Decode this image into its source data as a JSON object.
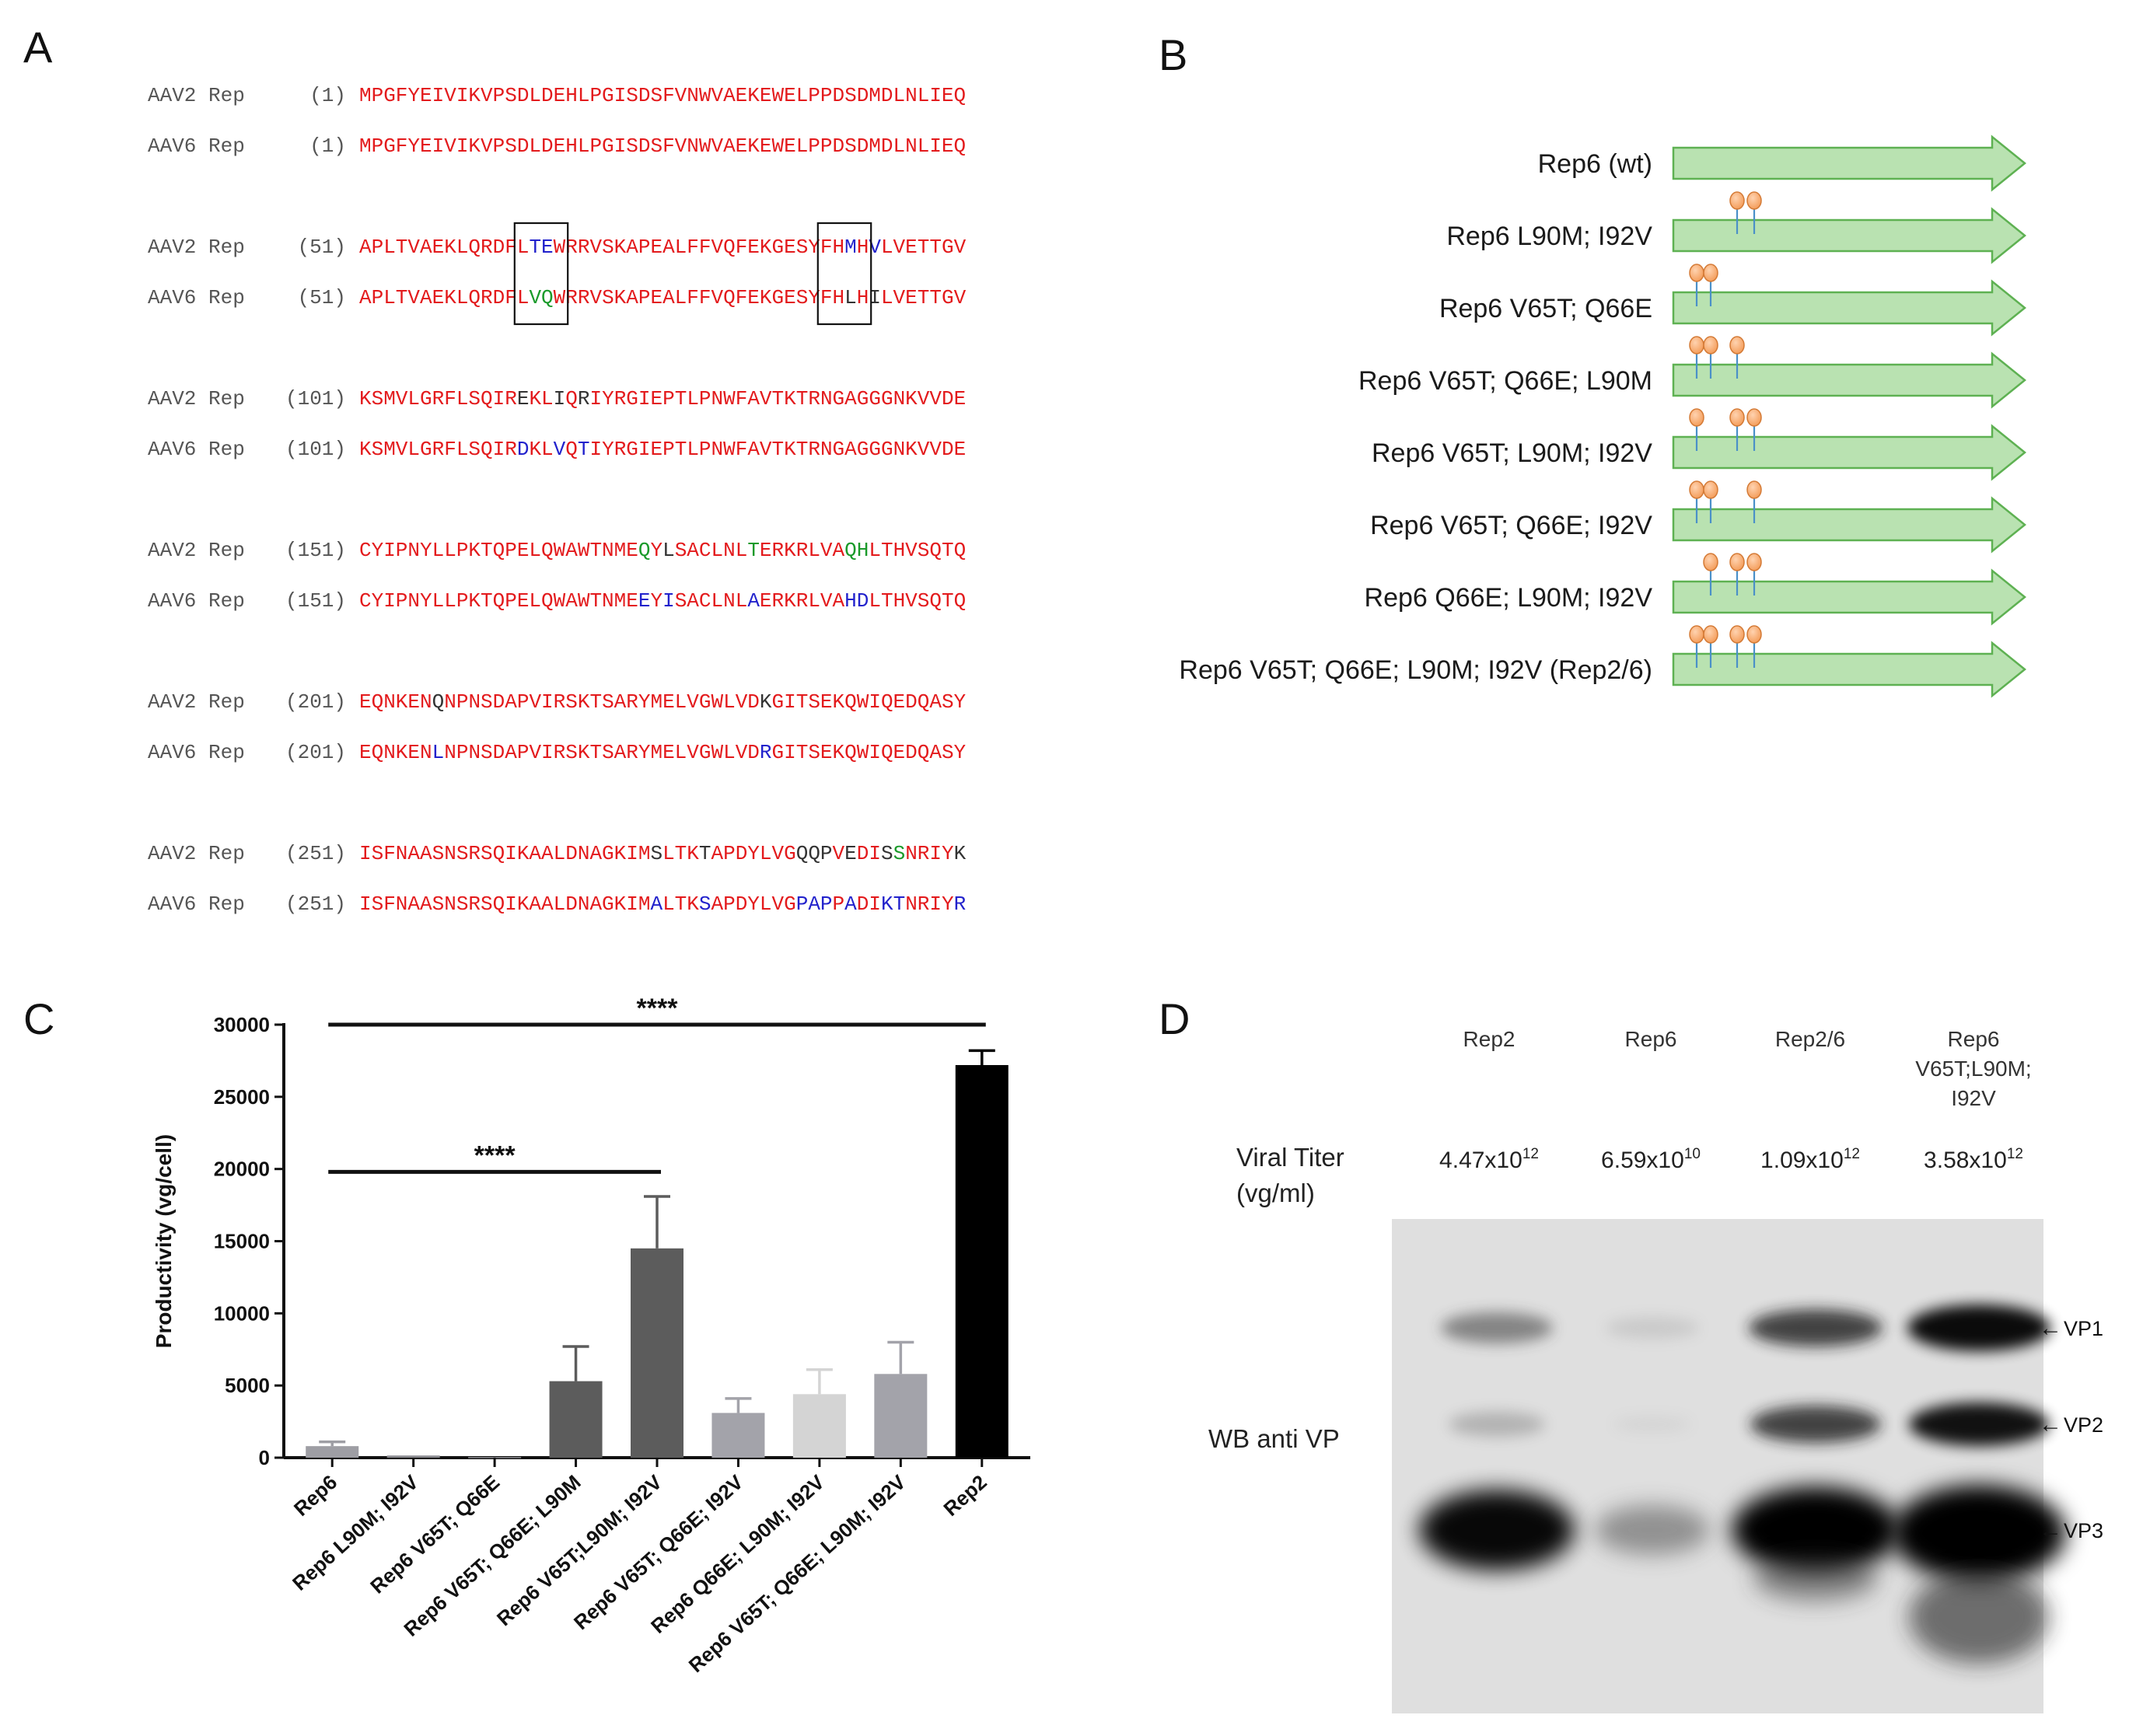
{
  "panels": {
    "a": "A",
    "b": "B",
    "c": "C",
    "d": "D"
  },
  "alignment": {
    "blocks": [
      {
        "start": "(1)",
        "aav2": "MPGFYEIVIKVPSDLDEHLPGISDSFVNWVAEKEWELPPDSDMDLNLIEQ",
        "aav6": "MPGFYEIVIKVPSDLDEHLPGISDSFVNWVAEKEWELPPDSDMDLNLIEQ",
        "diffs2": [],
        "diffs6": []
      },
      {
        "start": "(51)",
        "aav2": "APLTVAEKLQRDFLTEWRRVSKAPEALFFVQFEKGESYFHMHVLVETTGV",
        "aav6": "APLTVAEKLQRDFLVQWRRVSKAPEALFFVQFEKGESYFHLHILVETTGV",
        "diffs2": [
          [
            14,
            "#2222cc"
          ],
          [
            15,
            "#2222cc"
          ],
          [
            40,
            "#2222cc"
          ],
          [
            42,
            "#2222cc"
          ]
        ],
        "diffs6": [
          [
            14,
            "#1a9a2a"
          ],
          [
            15,
            "#1a9a2a"
          ],
          [
            40,
            "#333333"
          ],
          [
            42,
            "#333333"
          ]
        ]
      },
      {
        "start": "(101)",
        "aav2": "KSMVLGRFLSQIREKLIQRIYRGIEPTLPNWFAVTKTRNGAGGGNKVVDE",
        "aav6": "KSMVLGRFLSQIRDKLVQTIYRGIEPTLPNWFAVTKTRNGAGGGNKVVDE",
        "diffs2": [
          [
            13,
            "#333333"
          ],
          [
            16,
            "#333333"
          ],
          [
            18,
            "#333333"
          ]
        ],
        "diffs6": [
          [
            13,
            "#2222cc"
          ],
          [
            16,
            "#2222cc"
          ],
          [
            18,
            "#2222cc"
          ]
        ]
      },
      {
        "start": "(151)",
        "aav2": "CYIPNYLLPKTQPELQWAWTNMEQYLSACLNLTERKRLVAQHLTHVSQTQ",
        "aav6": "CYIPNYLLPKTQPELQWAWTNMEEYISACLNLAERKRLVAHDLTHVSQTQ",
        "diffs2": [
          [
            23,
            "#1a9a2a"
          ],
          [
            25,
            "#333333"
          ],
          [
            32,
            "#1a9a2a"
          ],
          [
            40,
            "#1a9a2a"
          ],
          [
            41,
            "#1a9a2a"
          ]
        ],
        "diffs6": [
          [
            23,
            "#2222cc"
          ],
          [
            25,
            "#2222cc"
          ],
          [
            32,
            "#2222cc"
          ],
          [
            40,
            "#2222cc"
          ],
          [
            41,
            "#2222cc"
          ]
        ]
      },
      {
        "start": "(201)",
        "aav2": "EQNKENQNPNSDAPVIRSKTSARYMELVGWLVDKGITSEKQWIQEDQASY",
        "aav6": "EQNKENLNPNSDAPVIRSKTSARYMELVGWLVDRGITSEKQWIQEDQASY",
        "diffs2": [
          [
            6,
            "#333333"
          ],
          [
            33,
            "#333333"
          ]
        ],
        "diffs6": [
          [
            6,
            "#2222cc"
          ],
          [
            33,
            "#2222cc"
          ]
        ]
      },
      {
        "start": "(251)",
        "aav2": "ISFNAASNSRSQIKAALDNAGKIMSLTKTAPDYLVGQQPVEDISSNRIYK",
        "aav6": "ISFNAASNSRSQIKAALDNAGKIMALTKSAPDYLVGPAPPADIKTNRIYR",
        "diffs2": [
          [
            24,
            "#333333"
          ],
          [
            28,
            "#333333"
          ],
          [
            36,
            "#333333"
          ],
          [
            37,
            "#333333"
          ],
          [
            38,
            "#333333"
          ],
          [
            40,
            "#333333"
          ],
          [
            43,
            "#333333"
          ],
          [
            44,
            "#1a9a2a"
          ],
          [
            49,
            "#333333"
          ]
        ],
        "diffs6": [
          [
            24,
            "#2222cc"
          ],
          [
            28,
            "#2222cc"
          ],
          [
            36,
            "#2222cc"
          ],
          [
            37,
            "#2222cc"
          ],
          [
            38,
            "#2222cc"
          ],
          [
            40,
            "#2222cc"
          ],
          [
            43,
            "#2222cc"
          ],
          [
            44,
            "#2222cc"
          ],
          [
            49,
            "#2222cc"
          ]
        ]
      }
    ],
    "name2": "AAV2 Rep",
    "name6": "AAV6 Rep"
  },
  "constructs": [
    {
      "label": "Rep6 (wt)",
      "muts": []
    },
    {
      "label": "Rep6 L90M; I92V",
      "muts": [
        90,
        92
      ]
    },
    {
      "label": "Rep6 V65T; Q66E",
      "muts": [
        65,
        66
      ]
    },
    {
      "label": "Rep6 V65T; Q66E; L90M",
      "muts": [
        65,
        66,
        90
      ]
    },
    {
      "label": "Rep6 V65T; L90M; I92V",
      "muts": [
        65,
        90,
        92
      ]
    },
    {
      "label": "Rep6 V65T; Q66E; I92V",
      "muts": [
        65,
        66,
        92
      ]
    },
    {
      "label": "Rep6 Q66E; L90M; I92V",
      "muts": [
        66,
        90,
        92
      ]
    },
    {
      "label": "Rep6 V65T; Q66E; L90M; I92V (Rep2/6)",
      "muts": [
        65,
        66,
        90,
        92
      ]
    }
  ],
  "chart_data": {
    "type": "bar",
    "ylabel": "Productivity (vg/cell)",
    "ylim": [
      0,
      30000
    ],
    "yticks": [
      0,
      5000,
      10000,
      15000,
      20000,
      25000,
      30000
    ],
    "categories": [
      "Rep6",
      "Rep6 L90M; I92V",
      "Rep6 V65T; Q66E",
      "Rep6 V65T; Q66E; L90M",
      "Rep6 V65T;L90M; I92V",
      "Rep6 V65T; Q66E; I92V",
      "Rep6 Q66E; L90M; I92V",
      "Rep6 V65T; Q66E; L90M; I92V",
      "Rep2"
    ],
    "values": [
      800,
      150,
      50,
      5300,
      14500,
      3100,
      4400,
      5800,
      27200
    ],
    "errors": [
      300,
      0,
      0,
      2400,
      3600,
      1000,
      1700,
      2200,
      1000
    ],
    "colors": [
      "#9e9ea4",
      "#8c8c92",
      "#8c8c92",
      "#5c5c5c",
      "#5c5c5c",
      "#a3a3aa",
      "#d4d4d4",
      "#a3a3aa",
      "#000000"
    ],
    "significance": [
      {
        "label": "****",
        "from": 0,
        "to": 8,
        "y": 30000
      },
      {
        "label": "****",
        "from": 0,
        "to": 4,
        "y": 19800
      }
    ]
  },
  "western": {
    "lanes": [
      "Rep2",
      "Rep6",
      "Rep2/6",
      "Rep6 V65T;L90M; I92V"
    ],
    "lane4_lines": [
      "Rep6",
      "V65T;L90M;",
      "I92V"
    ],
    "titer_label_1": "Viral Titer",
    "titer_label_2": "(vg/ml)",
    "titers": [
      {
        "mant": "4.47x10",
        "exp": "12"
      },
      {
        "mant": "6.59x10",
        "exp": "10"
      },
      {
        "mant": "1.09x10",
        "exp": "12"
      },
      {
        "mant": "3.58x10",
        "exp": "12"
      }
    ],
    "wb_label": "WB anti VP",
    "bands": [
      "VP1",
      "VP2",
      "VP3"
    ],
    "arrow": "←"
  }
}
